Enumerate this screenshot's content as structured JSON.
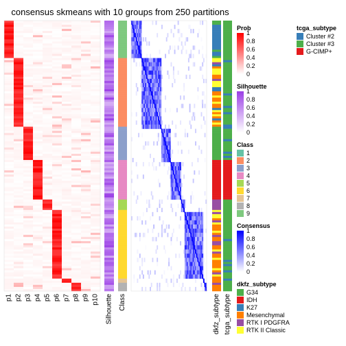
{
  "chart_data": {
    "type": "heatmap",
    "title": "consensus skmeans with 10 groups from 250 partitions",
    "n_samples": 130,
    "prob_columns": [
      "p1",
      "p2",
      "p3",
      "p4",
      "p5",
      "p6",
      "p7",
      "p8",
      "p9",
      "p10"
    ],
    "row_annotations": [
      "Silhouette",
      "Class"
    ],
    "col_annotations": [
      "dkfz_subtype",
      "tcga_subtype"
    ],
    "class_segments": [
      {
        "class": 9,
        "size": 18,
        "primary_prob": "p1"
      },
      {
        "class": 2,
        "size": 33,
        "primary_prob": "p2"
      },
      {
        "class": 3,
        "size": 16,
        "primary_prob": "p3"
      },
      {
        "class": 4,
        "size": 19,
        "primary_prob": "p4"
      },
      {
        "class": 5,
        "size": 5,
        "primary_prob": "p5"
      },
      {
        "class": 6,
        "size": 33,
        "primary_prob": "p6"
      },
      {
        "class": 7,
        "size": 2,
        "primary_prob": "p7"
      },
      {
        "class": 8,
        "size": 4,
        "primary_prob": "p8"
      }
    ],
    "silhouette_range": [
      0,
      1
    ],
    "consensus_range": [
      0,
      1
    ],
    "prob_range": [
      0,
      1
    ]
  },
  "legends": {
    "prob": {
      "title": "Prob",
      "ticks": [
        "1",
        "0.8",
        "0.6",
        "0.4",
        "0.2",
        "0"
      ],
      "colors": [
        "#ff0000",
        "#ffffff"
      ]
    },
    "silhouette": {
      "title": "Silhouette",
      "ticks": [
        "1",
        "0.8",
        "0.6",
        "0.4",
        "0.2",
        "0"
      ],
      "colors": [
        "#9b3fe6",
        "#ffffff"
      ]
    },
    "class": {
      "title": "Class",
      "items": [
        {
          "label": "1",
          "color": "#66c2a5"
        },
        {
          "label": "2",
          "color": "#fc8d62"
        },
        {
          "label": "3",
          "color": "#8da0cb"
        },
        {
          "label": "4",
          "color": "#e78ac3"
        },
        {
          "label": "5",
          "color": "#a6d854"
        },
        {
          "label": "6",
          "color": "#ffd92f"
        },
        {
          "label": "7",
          "color": "#e5c494"
        },
        {
          "label": "8",
          "color": "#b3b3b3"
        },
        {
          "label": "9",
          "color": "#7fc97f"
        }
      ]
    },
    "consensus": {
      "title": "Consensus",
      "ticks": [
        "1",
        "0.8",
        "0.6",
        "0.4",
        "0.2",
        "0"
      ],
      "colors": [
        "#0000ff",
        "#ffffff"
      ]
    },
    "dkfz_subtype": {
      "title": "dkfz_subtype",
      "items": [
        {
          "label": "G34",
          "color": "#4daf4a"
        },
        {
          "label": "IDH",
          "color": "#e41a1c"
        },
        {
          "label": "K27",
          "color": "#377eb8"
        },
        {
          "label": "Mesenchymal",
          "color": "#ff7f00"
        },
        {
          "label": "RTK I PDGFRA",
          "color": "#984ea3"
        },
        {
          "label": "RTK II Classic",
          "color": "#ffff33"
        }
      ]
    },
    "tcga_subtype": {
      "title": "tcga_subtype",
      "items": [
        {
          "label": "Cluster #2",
          "color": "#377eb8"
        },
        {
          "label": "Cluster #3",
          "color": "#4daf4a"
        },
        {
          "label": "G-CIMP+",
          "color": "#e41a1c"
        }
      ]
    }
  }
}
